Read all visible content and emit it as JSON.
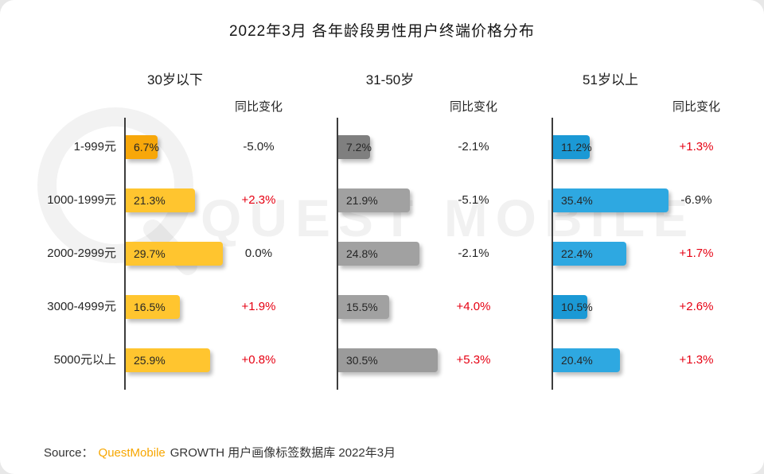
{
  "title": "2022年3月 各年龄段男性用户终端价格分布",
  "watermark_text": "QUEST MOBILE",
  "source": {
    "prefix": "Source：",
    "brand": "QuestMobile",
    "brand_color": "#F7A600",
    "suffix": "GROWTH 用户画像标签数据库 2022年3月"
  },
  "chart_data": {
    "type": "bar",
    "orientation": "horizontal",
    "title": "2022年3月 各年龄段男性用户终端价格分布",
    "yoy_header": "同比变化",
    "categories": [
      "1-999元",
      "1000-1999元",
      "2000-2999元",
      "3000-4999元",
      "5000元以上"
    ],
    "value_unit": "%",
    "grid": false,
    "legend_position": "none",
    "positive_change_color": "#E60012",
    "negative_change_color": "#262626",
    "groups": [
      {
        "name": "30岁以下",
        "values": [
          6.7,
          21.3,
          29.7,
          16.5,
          25.9
        ],
        "value_labels": [
          "6.7%",
          "21.3%",
          "29.7%",
          "16.5%",
          "25.9%"
        ],
        "changes": [
          "-5.0%",
          "+2.3%",
          "0.0%",
          "+1.9%",
          "+0.8%"
        ],
        "change_colors": [
          "#262626",
          "#E60012",
          "#262626",
          "#E60012",
          "#E60012"
        ],
        "bar_colors": [
          "#F7A70A",
          "#FFC52F",
          "#FFC52F",
          "#FFC52F",
          "#FFC52F"
        ]
      },
      {
        "name": "31-50岁",
        "values": [
          7.2,
          21.9,
          24.8,
          15.5,
          30.5
        ],
        "value_labels": [
          "7.2%",
          "21.9%",
          "24.8%",
          "15.5%",
          "30.5%"
        ],
        "changes": [
          "-2.1%",
          "-5.1%",
          "-2.1%",
          "+4.0%",
          "+5.3%"
        ],
        "change_colors": [
          "#262626",
          "#262626",
          "#262626",
          "#E60012",
          "#E60012"
        ],
        "bar_colors": [
          "#7F7F7F",
          "#A1A1A1",
          "#A1A1A1",
          "#A1A1A1",
          "#9B9B9B"
        ]
      },
      {
        "name": "51岁以上",
        "values": [
          11.2,
          35.4,
          22.4,
          10.5,
          20.4
        ],
        "value_labels": [
          "11.2%",
          "35.4%",
          "22.4%",
          "10.5%",
          "20.4%"
        ],
        "changes": [
          "+1.3%",
          "-6.9%",
          "+1.7%",
          "+2.6%",
          "+1.3%"
        ],
        "change_colors": [
          "#E60012",
          "#262626",
          "#E60012",
          "#E60012",
          "#E60012"
        ],
        "bar_colors": [
          "#1B99D5",
          "#2EA8E1",
          "#2EA8E1",
          "#1B99D5",
          "#2EA8E1"
        ]
      }
    ]
  }
}
